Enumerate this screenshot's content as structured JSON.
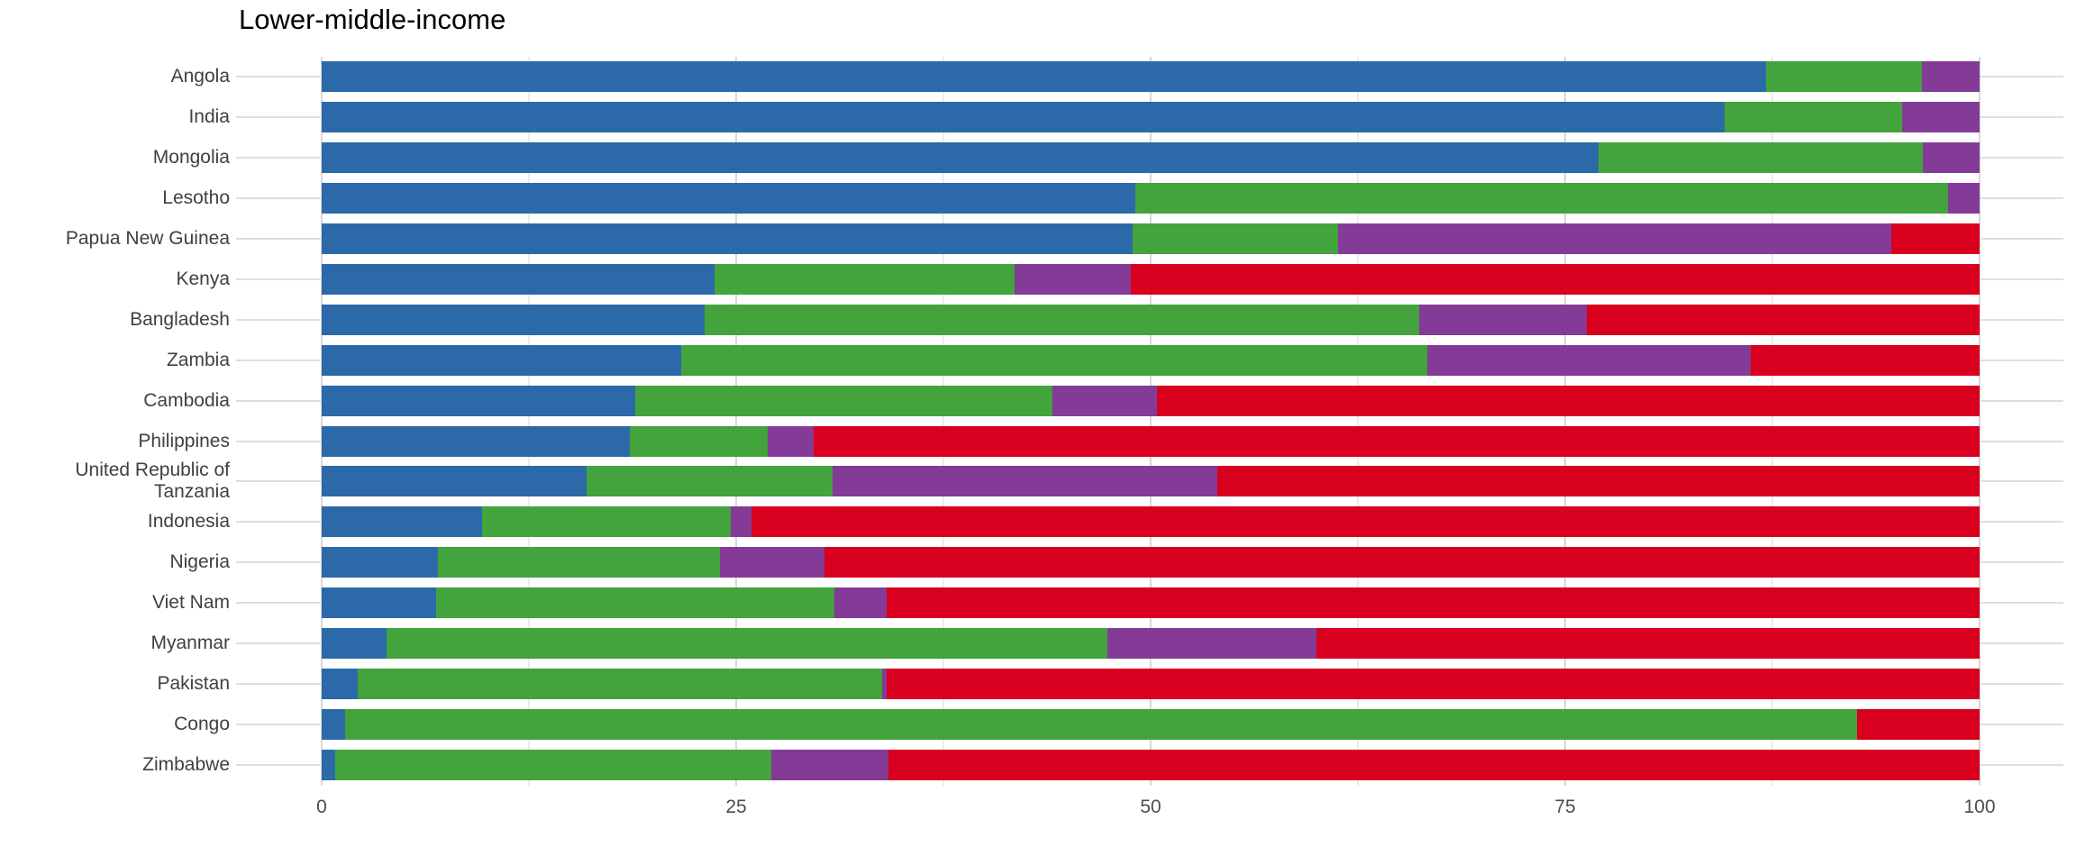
{
  "title": "Lower-middle-income",
  "colors": {
    "series_blue": "#2C69A8",
    "series_green": "#43A33C",
    "series_purple": "#843B97",
    "series_red": "#D8001E",
    "gridline_major": "#d8d8d8",
    "gridline_minor": "#ebebeb",
    "row_line": "#dedede",
    "title_text": "#000000",
    "category_text": "#404040",
    "axis_text": "#4d4d4d"
  },
  "x_axis": {
    "tick_labels": [
      "0",
      "25",
      "50",
      "75",
      "100"
    ],
    "tick_values": [
      0,
      25,
      50,
      75,
      100
    ],
    "minor_interval": 12.5,
    "min": 0,
    "max": 100
  },
  "chart_data": {
    "type": "bar",
    "stacked": true,
    "orientation": "horizontal",
    "title": "Lower-middle-income",
    "xlabel": "",
    "ylabel": "",
    "xlim": [
      0,
      100
    ],
    "grid": true,
    "legend_position": "none",
    "categories": [
      "Angola",
      "India",
      "Mongolia",
      "Lesotho",
      "Papua New Guinea",
      "Kenya",
      "Bangladesh",
      "Zambia",
      "Cambodia",
      "Philippines",
      "United Republic of Tanzania",
      "Indonesia",
      "Nigeria",
      "Viet Nam",
      "Myanmar",
      "Pakistan",
      "Congo",
      "Zimbabwe"
    ],
    "series": [
      {
        "name": "blue",
        "color": "#2C69A8",
        "values": [
          87.1,
          84.6,
          77.0,
          49.1,
          48.9,
          23.7,
          23.1,
          21.7,
          18.9,
          18.6,
          16.0,
          9.7,
          7.0,
          6.9,
          3.9,
          2.2,
          1.4,
          0.8
        ]
      },
      {
        "name": "green",
        "color": "#43A33C",
        "values": [
          9.4,
          10.7,
          19.6,
          49.0,
          12.4,
          18.1,
          43.1,
          45.0,
          25.2,
          8.3,
          14.8,
          15.0,
          17.0,
          24.0,
          43.5,
          31.6,
          91.2,
          26.3
        ]
      },
      {
        "name": "purple",
        "color": "#843B97",
        "values": [
          3.5,
          4.7,
          3.4,
          1.9,
          33.4,
          7.0,
          10.1,
          19.5,
          6.3,
          2.8,
          23.2,
          1.2,
          6.3,
          3.2,
          12.6,
          0.3,
          0.0,
          7.1
        ]
      },
      {
        "name": "red",
        "color": "#D8001E",
        "values": [
          0.0,
          0.0,
          0.0,
          0.0,
          5.3,
          51.2,
          23.7,
          13.8,
          49.6,
          70.3,
          46.0,
          74.1,
          69.7,
          65.9,
          40.0,
          65.9,
          7.4,
          65.8
        ]
      }
    ]
  }
}
